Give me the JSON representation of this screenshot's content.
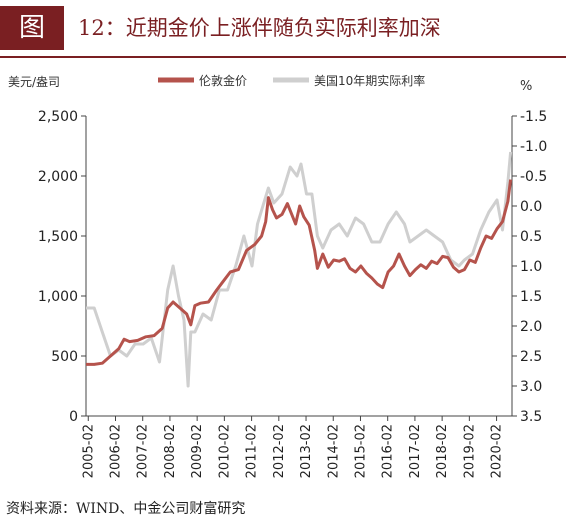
{
  "figure_label": "图",
  "title": "12：近期金价上涨伴随负实际利率加深",
  "source": "资料来源：WIND、中金公司财富研究",
  "colors": {
    "gold": "#b5534c",
    "real_rate": "#cfcfcf",
    "axis": "#444444",
    "accent": "#7a1f22"
  },
  "chart_data": {
    "type": "line",
    "left_unit": "美元/盎司",
    "right_unit": "%",
    "y_left": {
      "min": 0,
      "max": 2500,
      "ticks": [
        "0",
        "500",
        "1,000",
        "1,500",
        "2,000",
        "2,500"
      ]
    },
    "y_right": {
      "min": -1.5,
      "max": 3.5,
      "inverted": true,
      "ticks": [
        "-1.5",
        "-1.0",
        "-0.5",
        "0.0",
        "0.5",
        "1.0",
        "1.5",
        "2.0",
        "2.5",
        "3.0",
        "3.5"
      ]
    },
    "x_ticks": [
      "2005-02",
      "2006-02",
      "2007-02",
      "2008-02",
      "2009-02",
      "2010-02",
      "2011-02",
      "2012-02",
      "2013-02",
      "2014-02",
      "2015-02",
      "2016-02",
      "2017-02",
      "2018-02",
      "2019-02",
      "2020-02"
    ],
    "x_range": [
      2005.0,
      2020.65
    ],
    "legend": [
      "伦敦金价",
      "美国10年期实际利率"
    ],
    "series": [
      {
        "name": "伦敦金价",
        "axis": "left",
        "x": [
          2005.0,
          2005.3,
          2005.6,
          2005.9,
          2006.2,
          2006.4,
          2006.6,
          2006.9,
          2007.2,
          2007.5,
          2007.8,
          2008.0,
          2008.2,
          2008.45,
          2008.7,
          2008.85,
          2009.0,
          2009.2,
          2009.5,
          2009.8,
          2010.0,
          2010.3,
          2010.6,
          2010.9,
          2011.2,
          2011.45,
          2011.6,
          2011.7,
          2011.85,
          2012.0,
          2012.2,
          2012.4,
          2012.7,
          2012.85,
          2013.0,
          2013.2,
          2013.4,
          2013.5,
          2013.7,
          2013.9,
          2014.1,
          2014.3,
          2014.5,
          2014.7,
          2014.9,
          2015.1,
          2015.3,
          2015.5,
          2015.7,
          2015.9,
          2016.1,
          2016.3,
          2016.5,
          2016.7,
          2016.9,
          2017.1,
          2017.3,
          2017.5,
          2017.7,
          2017.9,
          2018.1,
          2018.3,
          2018.5,
          2018.7,
          2018.9,
          2019.1,
          2019.3,
          2019.5,
          2019.7,
          2019.9,
          2020.1,
          2020.3,
          2020.5,
          2020.6
        ],
        "values": [
          430,
          430,
          440,
          500,
          560,
          640,
          620,
          630,
          660,
          670,
          730,
          900,
          950,
          900,
          850,
          760,
          920,
          940,
          950,
          1050,
          1110,
          1200,
          1220,
          1380,
          1430,
          1500,
          1620,
          1820,
          1720,
          1650,
          1680,
          1770,
          1600,
          1750,
          1660,
          1590,
          1380,
          1230,
          1350,
          1240,
          1300,
          1290,
          1310,
          1230,
          1200,
          1250,
          1190,
          1150,
          1100,
          1070,
          1200,
          1250,
          1350,
          1250,
          1170,
          1220,
          1260,
          1230,
          1290,
          1270,
          1330,
          1320,
          1240,
          1200,
          1220,
          1300,
          1280,
          1400,
          1500,
          1480,
          1560,
          1620,
          1790,
          1970
        ]
      },
      {
        "name": "美国10年期实际利率",
        "axis": "right",
        "x": [
          2005.0,
          2005.3,
          2005.6,
          2005.9,
          2006.2,
          2006.5,
          2006.8,
          2007.1,
          2007.4,
          2007.7,
          2008.0,
          2008.2,
          2008.4,
          2008.6,
          2008.75,
          2008.85,
          2009.0,
          2009.3,
          2009.6,
          2009.9,
          2010.2,
          2010.5,
          2010.8,
          2011.1,
          2011.3,
          2011.5,
          2011.7,
          2011.9,
          2012.2,
          2012.5,
          2012.75,
          2012.9,
          2013.1,
          2013.3,
          2013.5,
          2013.7,
          2014.0,
          2014.3,
          2014.6,
          2014.9,
          2015.2,
          2015.5,
          2015.8,
          2016.1,
          2016.4,
          2016.7,
          2016.9,
          2017.2,
          2017.5,
          2017.8,
          2018.1,
          2018.4,
          2018.7,
          2018.9,
          2019.2,
          2019.5,
          2019.8,
          2020.1,
          2020.3,
          2020.5,
          2020.6
        ],
        "values": [
          1.7,
          1.7,
          2.1,
          2.5,
          2.4,
          2.5,
          2.3,
          2.3,
          2.2,
          2.6,
          1.4,
          1.0,
          1.5,
          1.9,
          3.0,
          2.1,
          2.1,
          1.8,
          1.9,
          1.4,
          1.4,
          1.0,
          0.5,
          1.0,
          0.3,
          0.0,
          -0.3,
          -0.05,
          -0.2,
          -0.65,
          -0.5,
          -0.7,
          -0.2,
          -0.2,
          0.5,
          0.7,
          0.4,
          0.3,
          0.5,
          0.2,
          0.3,
          0.6,
          0.6,
          0.3,
          0.1,
          0.3,
          0.6,
          0.5,
          0.4,
          0.5,
          0.6,
          0.9,
          1.0,
          0.9,
          0.8,
          0.4,
          0.1,
          -0.1,
          0.4,
          -0.4,
          -0.9
        ]
      }
    ]
  }
}
